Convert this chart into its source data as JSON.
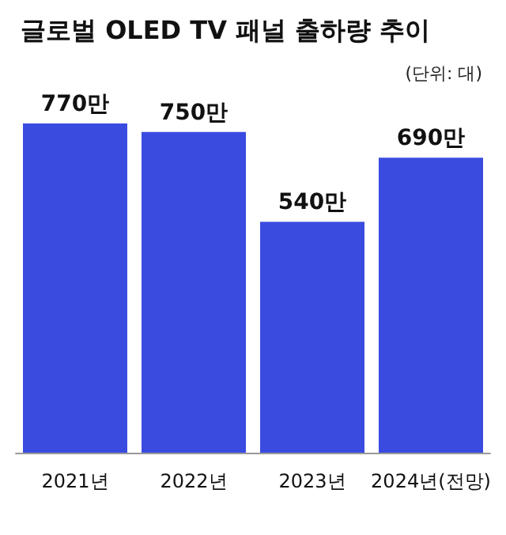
{
  "chart_data": {
    "type": "bar",
    "title": "글로벌 OLED TV 패널 출하량 추이",
    "subtitle": "(단위: 대)",
    "categories": [
      "2021년",
      "2022년",
      "2023년",
      "2024년(전망)"
    ],
    "values": [
      770,
      750,
      540,
      690
    ],
    "value_labels": [
      "770만",
      "750만",
      "540만",
      "690만"
    ],
    "color": "#3a4ce0"
  }
}
